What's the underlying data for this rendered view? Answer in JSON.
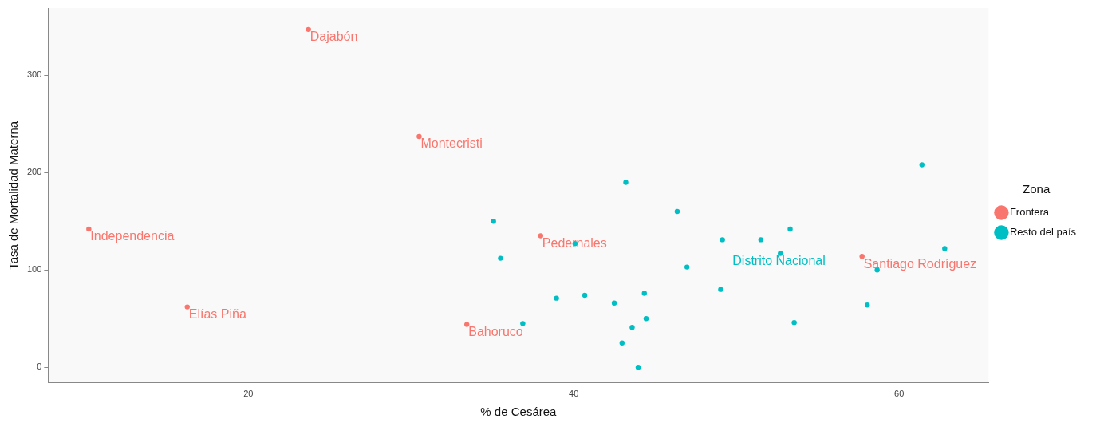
{
  "chart_data": {
    "type": "scatter",
    "xlabel": "% de Cesárea",
    "ylabel": "Tasa de Mortalidad Materna",
    "legend_title": "Zona",
    "legend": "right",
    "grid": false,
    "marker": "circle",
    "xlim": [
      7.7,
      65.5
    ],
    "xticks": [
      20,
      40,
      60
    ],
    "ylim": [
      -16,
      369
    ],
    "yticks": [
      0,
      100,
      200,
      300
    ],
    "series": [
      {
        "name": "Frontera",
        "color": "#f8766d",
        "x": [
          23.7,
          30.5,
          10.2,
          16.25,
          33.43,
          37.97,
          57.72
        ],
        "values": [
          347,
          237,
          142,
          62,
          44,
          135,
          114
        ]
      },
      {
        "name": "Resto del país",
        "color": "#00bfc4",
        "x": [
          35.07,
          35.5,
          36.87,
          38.94,
          40.08,
          40.68,
          42.49,
          42.97,
          43.2,
          43.59,
          43.96,
          44.34,
          44.45,
          46.36,
          46.96,
          49.03,
          49.14,
          51.5,
          52.7,
          53.3,
          53.55,
          58.04,
          58.65,
          61.4,
          62.8
        ],
        "values": [
          150,
          112,
          45,
          71,
          127,
          74,
          66,
          25,
          190,
          41,
          0,
          76,
          50,
          160,
          103,
          80,
          131,
          131,
          117,
          142,
          46,
          64,
          100,
          208,
          122
        ]
      }
    ],
    "annotations": [
      {
        "text": "Dajabón",
        "x": 23.7,
        "y": 347
      },
      {
        "text": "Montecristi",
        "x": 30.5,
        "y": 237
      },
      {
        "text": "Independencia",
        "x": 10.2,
        "y": 142
      },
      {
        "text": "Elías Piña",
        "x": 16.25,
        "y": 62
      },
      {
        "text": "Bahoruco",
        "x": 33.43,
        "y": 44
      },
      {
        "text": "Pedernales",
        "x": 37.97,
        "y": 135
      },
      {
        "text": "Santiago Rodríguez",
        "x": 57.72,
        "y": 114
      },
      {
        "text": "Distrito Nacional",
        "x": 52.7,
        "y": 117
      }
    ]
  }
}
